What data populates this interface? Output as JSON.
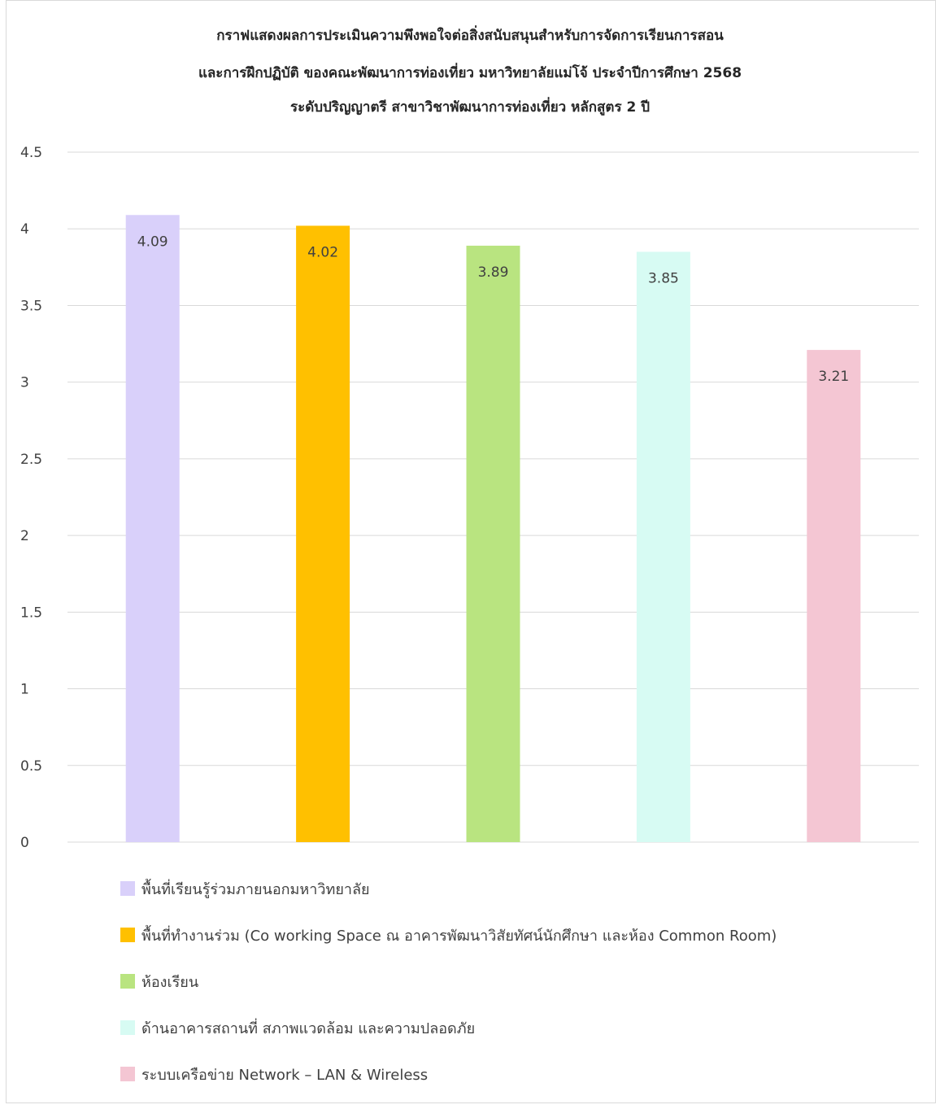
{
  "chart_data": {
    "type": "bar",
    "title": [
      "กราฟแสดงผลการประเมินความพึงพอใจต่อสิ่งสนับสนุนสำหรับการจัดการเรียนการสอน",
      "และการฝึกปฏิบัติ ของคณะพัฒนาการท่องเที่ยว มหาวิทยาลัยแม่โจ้ ประจำปีการศึกษา 2568",
      "ระดับปริญญาตรี สาขาวิชาพัฒนาการท่องเที่ยว หลักสูตร 2 ปี"
    ],
    "ylim": [
      0,
      4.5
    ],
    "yticks": [
      "0",
      "0.5",
      "1",
      "1.5",
      "2",
      "2.5",
      "3",
      "3.5",
      "4",
      "4.5"
    ],
    "grid": true,
    "legend_position": "bottom",
    "series": [
      {
        "name": "พื้นที่เรียนรู้ร่วมภายนอกมหาวิทยาลัย",
        "value": 4.09,
        "label": "4.09",
        "color": "#d9d0fa"
      },
      {
        "name": "พื้นที่ทำงานร่วม (Co working Space ณ อาคารพัฒนาวิสัยทัศน์นักศึกษา และห้อง Common Room)",
        "value": 4.02,
        "label": "4.02",
        "color": "#ffc000"
      },
      {
        "name": "ห้องเรียน",
        "value": 3.89,
        "label": "3.89",
        "color": "#b9e480"
      },
      {
        "name": "ด้านอาคารสถานที่ สภาพแวดล้อม และความปลอดภัย",
        "value": 3.85,
        "label": "3.85",
        "color": "#d7fbf3"
      },
      {
        "name": "ระบบเครือข่าย Network – LAN & Wireless",
        "value": 3.21,
        "label": "3.21",
        "color": "#f4c6d3"
      }
    ]
  }
}
